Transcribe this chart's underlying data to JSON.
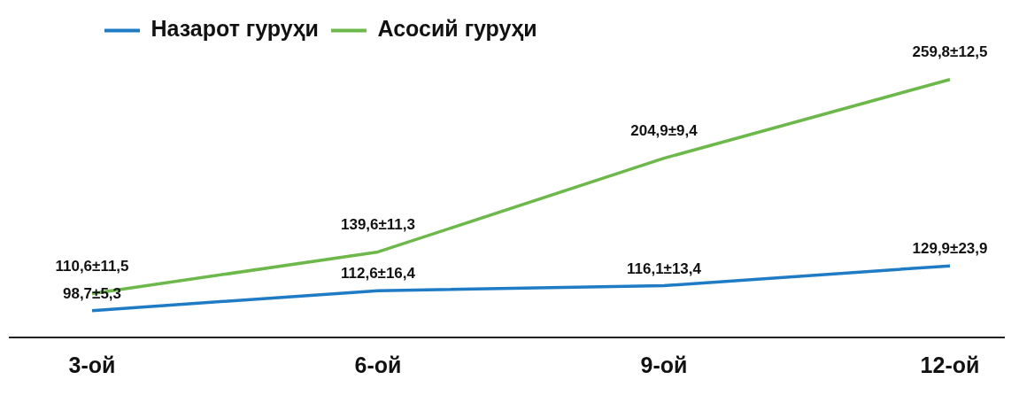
{
  "chart_data": {
    "type": "line",
    "categories": [
      "3-ой",
      "6-ой",
      "9-ой",
      "12-ой"
    ],
    "series": [
      {
        "name": "Назарот гуруҳи",
        "color": "#1f7cc4",
        "values": [
          98.7,
          112.6,
          116.1,
          129.9
        ],
        "value_labels": [
          "98,7±5,3",
          "112,6±16,4",
          "116,1±13,4",
          "129,9±23,9"
        ]
      },
      {
        "name": "Асосий гуруҳи",
        "color": "#6cb84a",
        "values": [
          110.6,
          139.6,
          204.9,
          259.8
        ],
        "value_labels": [
          "110,6±11,5",
          "139,6±11,3",
          "204,9±9,4",
          "259,8±12,5"
        ]
      }
    ],
    "legend": "top",
    "grid": false,
    "marker": "none"
  }
}
